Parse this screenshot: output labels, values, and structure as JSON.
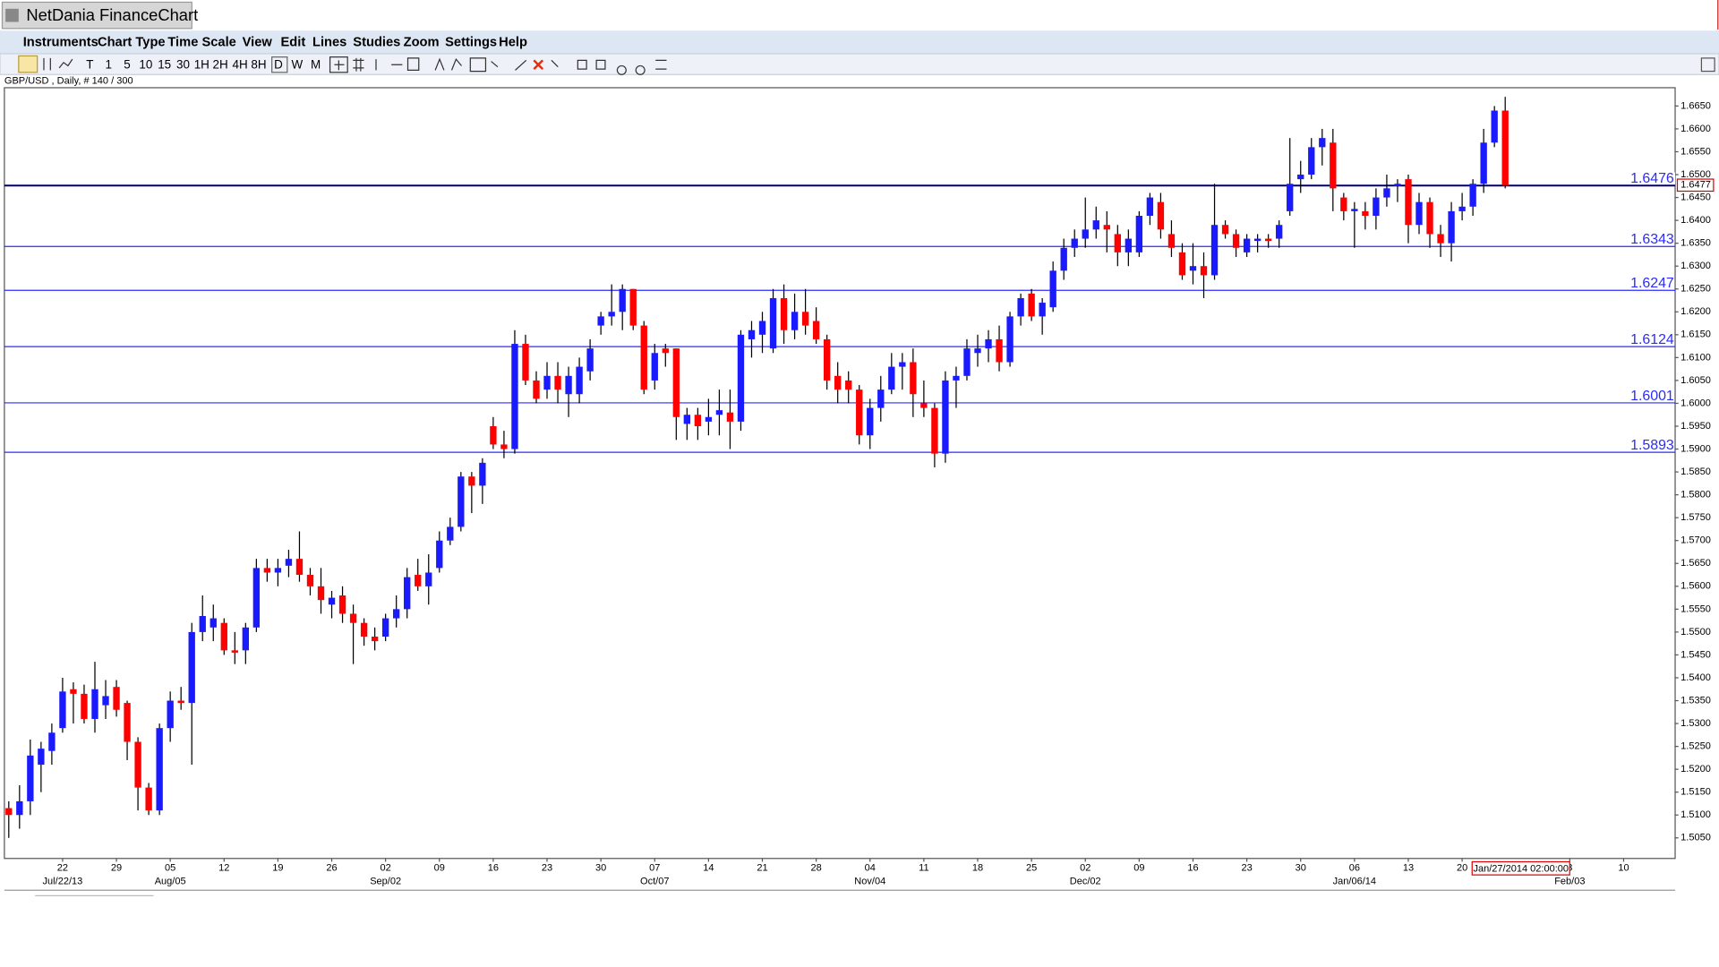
{
  "window": {
    "title": "NetDania FinanceChart",
    "menu": [
      "Instruments",
      "Chart Type",
      "Time Scale",
      "View",
      "Edit",
      "Lines",
      "Studies",
      "Zoom",
      "Settings",
      "Help"
    ],
    "toolbar": [
      "T",
      "1",
      "5",
      "10",
      "15",
      "30",
      "1H",
      "2H",
      "4H",
      "8H",
      "D",
      "W",
      "M"
    ]
  },
  "chart_data": {
    "type": "candlestick",
    "title": "GBP/USD , Daily, # 140 / 300",
    "up_color": "#1a1aff",
    "down_color": "#ff0000",
    "grid": false,
    "open": [
      1.5115,
      1.51,
      1.513,
      1.521,
      1.524,
      1.529,
      1.5375,
      1.5365,
      1.531,
      1.534,
      1.538,
      1.5345,
      1.526,
      1.516,
      1.511,
      1.529,
      1.535,
      1.5345,
      1.55,
      1.551,
      1.552,
      1.546,
      1.546,
      1.551,
      1.564,
      1.563,
      1.5645,
      1.566,
      1.5625,
      1.56,
      1.556,
      1.558,
      1.554,
      1.552,
      1.549,
      1.549,
      1.553,
      1.555,
      1.5625,
      1.56,
      1.564,
      1.57,
      1.573,
      1.584,
      1.582,
      1.595,
      1.591,
      1.59,
      1.613,
      1.605,
      1.603,
      1.606,
      1.602,
      1.602,
      1.607,
      1.617,
      1.619,
      1.62,
      1.625,
      1.617,
      1.605,
      1.612,
      1.612,
      1.5955,
      1.5975,
      1.596,
      1.5975,
      1.598,
      1.596,
      1.614,
      1.615,
      1.612,
      1.623,
      1.616,
      1.62,
      1.618,
      1.614,
      1.606,
      1.605,
      1.603,
      1.593,
      1.599,
      1.603,
      1.608,
      1.609,
      1.6,
      1.599,
      1.589,
      1.605,
      1.606,
      1.611,
      1.612,
      1.614,
      1.609,
      1.619,
      1.624,
      1.619,
      1.621,
      1.629,
      1.634,
      1.636,
      1.638,
      1.639,
      1.637,
      1.633,
      1.633,
      1.641,
      1.644,
      1.637,
      1.633,
      1.629,
      1.63,
      1.628,
      1.639,
      1.637,
      1.633,
      1.6355,
      1.636,
      1.636,
      1.642,
      1.649,
      1.65,
      1.656,
      1.657,
      1.645,
      1.642,
      1.642,
      1.641,
      1.645,
      1.6475,
      1.649,
      1.639,
      1.644,
      1.637,
      1.635,
      1.642,
      1.643,
      1.648,
      1.657,
      1.664
    ],
    "high": [
      1.513,
      1.5165,
      1.5265,
      1.526,
      1.53,
      1.54,
      1.539,
      1.5385,
      1.5435,
      1.5395,
      1.5395,
      1.535,
      1.527,
      1.517,
      1.53,
      1.537,
      1.538,
      1.552,
      1.558,
      1.556,
      1.553,
      1.55,
      1.552,
      1.566,
      1.566,
      1.566,
      1.568,
      1.572,
      1.564,
      1.564,
      1.559,
      1.56,
      1.556,
      1.553,
      1.551,
      1.554,
      1.558,
      1.564,
      1.566,
      1.567,
      1.572,
      1.575,
      1.585,
      1.585,
      1.588,
      1.597,
      1.594,
      1.616,
      1.615,
      1.607,
      1.609,
      1.609,
      1.608,
      1.61,
      1.614,
      1.62,
      1.626,
      1.626,
      1.625,
      1.618,
      1.613,
      1.613,
      1.612,
      1.599,
      1.599,
      1.601,
      1.603,
      1.603,
      1.616,
      1.618,
      1.62,
      1.625,
      1.626,
      1.624,
      1.625,
      1.621,
      1.615,
      1.609,
      1.607,
      1.604,
      1.601,
      1.606,
      1.611,
      1.611,
      1.612,
      1.605,
      1.6,
      1.607,
      1.608,
      1.614,
      1.615,
      1.616,
      1.617,
      1.62,
      1.624,
      1.625,
      1.623,
      1.631,
      1.636,
      1.638,
      1.645,
      1.643,
      1.642,
      1.639,
      1.638,
      1.642,
      1.646,
      1.646,
      1.64,
      1.635,
      1.635,
      1.633,
      1.648,
      1.64,
      1.638,
      1.637,
      1.637,
      1.637,
      1.64,
      1.658,
      1.653,
      1.658,
      1.66,
      1.66,
      1.646,
      1.644,
      1.644,
      1.647,
      1.65,
      1.649,
      1.65,
      1.646,
      1.645,
      1.639,
      1.644,
      1.646,
      1.649,
      1.66,
      1.665,
      1.667
    ],
    "low": [
      1.505,
      1.507,
      1.51,
      1.515,
      1.521,
      1.528,
      1.53,
      1.53,
      1.528,
      1.531,
      1.5315,
      1.522,
      1.511,
      1.51,
      1.51,
      1.526,
      1.533,
      1.521,
      1.548,
      1.548,
      1.545,
      1.543,
      1.543,
      1.55,
      1.561,
      1.56,
      1.562,
      1.561,
      1.558,
      1.554,
      1.553,
      1.552,
      1.543,
      1.547,
      1.546,
      1.548,
      1.551,
      1.553,
      1.559,
      1.556,
      1.563,
      1.569,
      1.572,
      1.576,
      1.578,
      1.59,
      1.588,
      1.589,
      1.604,
      1.6,
      1.601,
      1.6,
      1.597,
      1.6,
      1.605,
      1.615,
      1.617,
      1.616,
      1.616,
      1.602,
      1.603,
      1.608,
      1.592,
      1.592,
      1.592,
      1.593,
      1.593,
      1.59,
      1.594,
      1.61,
      1.611,
      1.611,
      1.613,
      1.614,
      1.615,
      1.613,
      1.603,
      1.6,
      1.6,
      1.591,
      1.59,
      1.596,
      1.602,
      1.603,
      1.597,
      1.597,
      1.586,
      1.587,
      1.599,
      1.605,
      1.608,
      1.609,
      1.607,
      1.608,
      1.617,
      1.618,
      1.615,
      1.62,
      1.627,
      1.632,
      1.634,
      1.636,
      1.633,
      1.63,
      1.63,
      1.632,
      1.639,
      1.636,
      1.632,
      1.627,
      1.626,
      1.623,
      1.627,
      1.636,
      1.632,
      1.632,
      1.633,
      1.634,
      1.634,
      1.641,
      1.646,
      1.649,
      1.652,
      1.642,
      1.64,
      1.634,
      1.638,
      1.638,
      1.643,
      1.644,
      1.635,
      1.637,
      1.634,
      1.632,
      1.631,
      1.64,
      1.641,
      1.646,
      1.656,
      1.647
    ],
    "close": [
      1.51,
      1.513,
      1.523,
      1.5245,
      1.528,
      1.537,
      1.5365,
      1.531,
      1.5375,
      1.536,
      1.533,
      1.526,
      1.516,
      1.511,
      1.529,
      1.535,
      1.5345,
      1.55,
      1.5535,
      1.553,
      1.546,
      1.5455,
      1.551,
      1.564,
      1.563,
      1.564,
      1.566,
      1.5625,
      1.56,
      1.557,
      1.5575,
      1.554,
      1.552,
      1.549,
      1.548,
      1.553,
      1.555,
      1.562,
      1.56,
      1.563,
      1.57,
      1.573,
      1.584,
      1.582,
      1.587,
      1.591,
      1.59,
      1.613,
      1.605,
      1.601,
      1.606,
      1.603,
      1.606,
      1.608,
      1.612,
      1.619,
      1.62,
      1.625,
      1.617,
      1.603,
      1.611,
      1.611,
      1.597,
      1.5975,
      1.595,
      1.597,
      1.5985,
      1.596,
      1.615,
      1.616,
      1.618,
      1.623,
      1.616,
      1.62,
      1.617,
      1.614,
      1.605,
      1.603,
      1.603,
      1.593,
      1.599,
      1.603,
      1.608,
      1.609,
      1.602,
      1.599,
      1.589,
      1.605,
      1.606,
      1.612,
      1.612,
      1.614,
      1.609,
      1.619,
      1.623,
      1.619,
      1.622,
      1.629,
      1.634,
      1.636,
      1.638,
      1.64,
      1.638,
      1.633,
      1.636,
      1.641,
      1.645,
      1.638,
      1.634,
      1.628,
      1.63,
      1.628,
      1.639,
      1.637,
      1.634,
      1.636,
      1.636,
      1.6355,
      1.639,
      1.648,
      1.65,
      1.656,
      1.658,
      1.647,
      1.642,
      1.6425,
      1.641,
      1.645,
      1.647,
      1.648,
      1.639,
      1.644,
      1.637,
      1.635,
      1.642,
      1.643,
      1.648,
      1.657,
      1.664,
      1.6477
    ],
    "ylim": [
      1.5005,
      1.669
    ],
    "yticks": [
      {
        "value": 1.505,
        "label": "1.5050"
      },
      {
        "value": 1.51,
        "label": "1.5100"
      },
      {
        "value": 1.515,
        "label": "1.5150"
      },
      {
        "value": 1.52,
        "label": "1.5200"
      },
      {
        "value": 1.525,
        "label": "1.5250"
      },
      {
        "value": 1.53,
        "label": "1.5300"
      },
      {
        "value": 1.535,
        "label": "1.5350"
      },
      {
        "value": 1.54,
        "label": "1.5400"
      },
      {
        "value": 1.545,
        "label": "1.5450"
      },
      {
        "value": 1.55,
        "label": "1.5500"
      },
      {
        "value": 1.555,
        "label": "1.5550"
      },
      {
        "value": 1.56,
        "label": "1.5600"
      },
      {
        "value": 1.565,
        "label": "1.5650"
      },
      {
        "value": 1.57,
        "label": "1.5700"
      },
      {
        "value": 1.575,
        "label": "1.5750"
      },
      {
        "value": 1.58,
        "label": "1.5800"
      },
      {
        "value": 1.585,
        "label": "1.5850"
      },
      {
        "value": 1.59,
        "label": "1.5900"
      },
      {
        "value": 1.595,
        "label": "1.5950"
      },
      {
        "value": 1.6,
        "label": "1.6000"
      },
      {
        "value": 1.605,
        "label": "1.6050"
      },
      {
        "value": 1.61,
        "label": "1.6100"
      },
      {
        "value": 1.615,
        "label": "1.6150"
      },
      {
        "value": 1.62,
        "label": "1.6200"
      },
      {
        "value": 1.625,
        "label": "1.6250"
      },
      {
        "value": 1.63,
        "label": "1.6300"
      },
      {
        "value": 1.635,
        "label": "1.6350"
      },
      {
        "value": 1.64,
        "label": "1.6400"
      },
      {
        "value": 1.645,
        "label": "1.6450"
      },
      {
        "value": 1.65,
        "label": "1.6500"
      },
      {
        "value": 1.655,
        "label": "1.6550"
      },
      {
        "value": 1.66,
        "label": "1.6600"
      },
      {
        "value": 1.665,
        "label": "1.6650"
      }
    ],
    "xticks": [
      {
        "value": 5,
        "label": "22"
      },
      {
        "value": 10,
        "label": "29"
      },
      {
        "value": 15,
        "label": "05"
      },
      {
        "value": 20,
        "label": "12"
      },
      {
        "value": 25,
        "label": "19"
      },
      {
        "value": 30,
        "label": "26"
      },
      {
        "value": 35,
        "label": "02"
      },
      {
        "value": 40,
        "label": "09"
      },
      {
        "value": 45,
        "label": "16"
      },
      {
        "value": 50,
        "label": "23"
      },
      {
        "value": 55,
        "label": "30"
      },
      {
        "value": 60,
        "label": "07"
      },
      {
        "value": 65,
        "label": "14"
      },
      {
        "value": 70,
        "label": "21"
      },
      {
        "value": 75,
        "label": "28"
      },
      {
        "value": 80,
        "label": "04"
      },
      {
        "value": 85,
        "label": "11"
      },
      {
        "value": 90,
        "label": "18"
      },
      {
        "value": 95,
        "label": "25"
      },
      {
        "value": 100,
        "label": "02"
      },
      {
        "value": 105,
        "label": "09"
      },
      {
        "value": 110,
        "label": "16"
      },
      {
        "value": 115,
        "label": "23"
      },
      {
        "value": 120,
        "label": "30"
      },
      {
        "value": 125,
        "label": "06"
      },
      {
        "value": 130,
        "label": "13"
      },
      {
        "value": 135,
        "label": "20"
      },
      {
        "value": 145,
        "label": "3"
      },
      {
        "value": 150,
        "label": "10"
      }
    ],
    "xticks2": [
      {
        "value": 5,
        "label": "Jul/22/13"
      },
      {
        "value": 15,
        "label": "Aug/05"
      },
      {
        "value": 35,
        "label": "Sep/02"
      },
      {
        "value": 60,
        "label": "Oct/07"
      },
      {
        "value": 80,
        "label": "Nov/04"
      },
      {
        "value": 100,
        "label": "Dec/02"
      },
      {
        "value": 125,
        "label": "Jan/06/14"
      },
      {
        "value": 145,
        "label": "Feb/03"
      }
    ],
    "cursor_label": "Jan/27/2014 02:00:00",
    "hlines": [
      {
        "value": 1.6476,
        "label": "1.6476"
      },
      {
        "value": 1.6343,
        "label": "1.6343"
      },
      {
        "value": 1.6247,
        "label": "1.6247"
      },
      {
        "value": 1.6124,
        "label": "1.6124"
      },
      {
        "value": 1.6001,
        "label": "1.6001"
      },
      {
        "value": 1.5893,
        "label": "1.5893"
      }
    ],
    "last_price": {
      "value": 1.6477,
      "label": "1.6477"
    }
  }
}
